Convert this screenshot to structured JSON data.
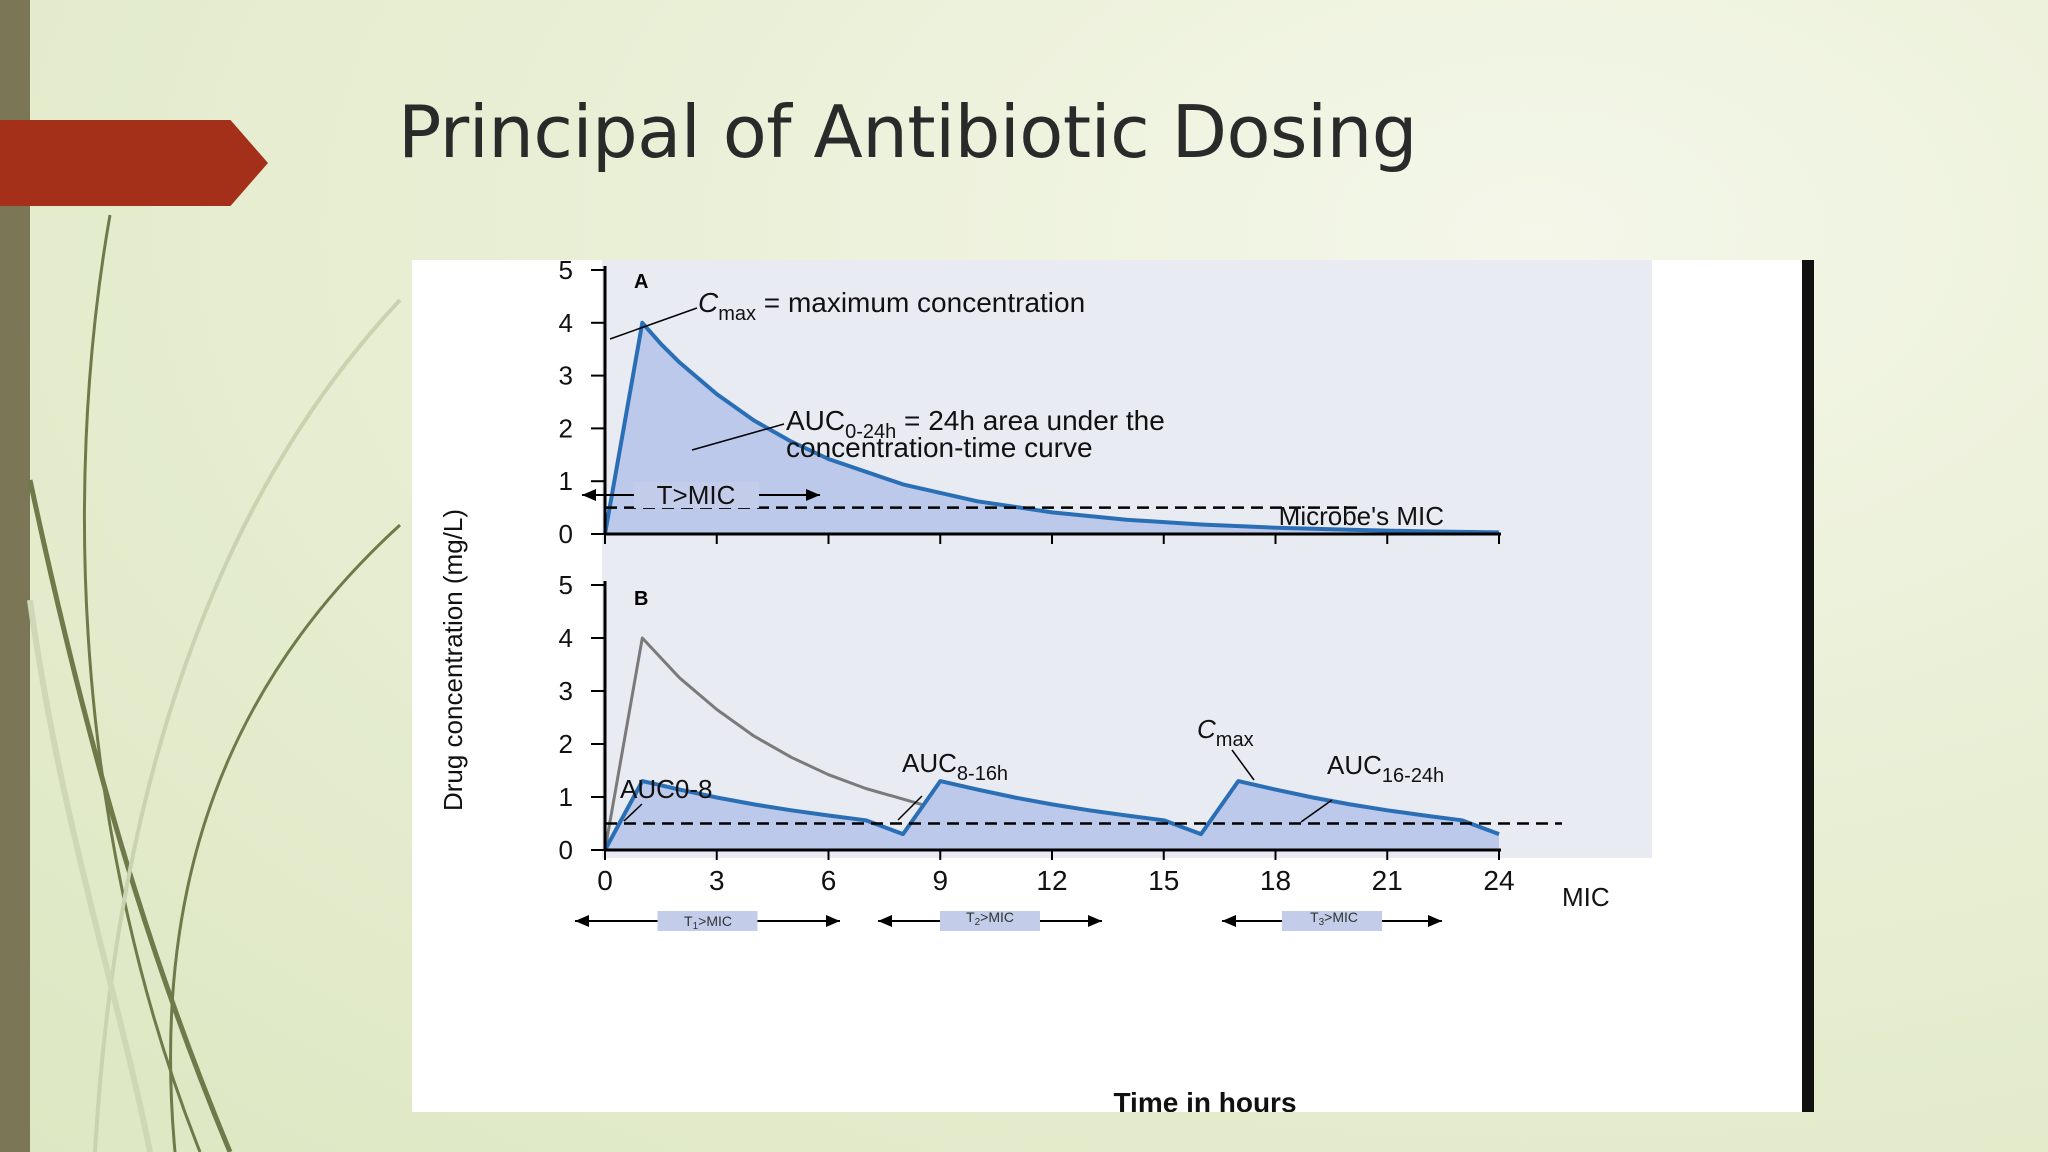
{
  "slide": {
    "title": "Principal of Antibiotic Dosing"
  },
  "chart_data": [
    {
      "panel": "A",
      "type": "area",
      "xlim": [
        0,
        24
      ],
      "ylim": [
        0,
        5
      ],
      "yticks": [
        0,
        1,
        2,
        3,
        4,
        5
      ],
      "ylabel": "Drug concentration (mg/L)",
      "mic": 0.5,
      "series": [
        {
          "x": [
            0,
            1,
            1.5,
            2,
            3,
            4,
            5,
            6,
            8,
            10,
            12,
            14,
            16,
            18,
            20,
            22,
            24
          ],
          "values": [
            0,
            4.0,
            3.6,
            3.25,
            2.65,
            2.15,
            1.75,
            1.42,
            0.94,
            0.62,
            0.41,
            0.27,
            0.18,
            0.12,
            0.08,
            0.05,
            0.03
          ]
        }
      ],
      "annotations": {
        "cmax": "C",
        "cmax_sub": "max",
        "cmax_text": " = maximum concentration",
        "auc": "AUC",
        "auc_sub": "0-24h",
        "auc_text": " = 24h area under the",
        "auc_text2": "concentration-time curve",
        "tmic": "T>MIC",
        "mic_label": "Microbe's MIC"
      }
    },
    {
      "panel": "B",
      "type": "area",
      "xlim": [
        0,
        24
      ],
      "xticks": [
        0,
        3,
        6,
        9,
        12,
        15,
        18,
        21,
        24
      ],
      "ylim": [
        0,
        5
      ],
      "yticks": [
        0,
        1,
        2,
        3,
        4,
        5
      ],
      "xlabel": "Time in hours",
      "mic": 0.5,
      "series": [
        {
          "style": "reference",
          "x": [
            0,
            1,
            2,
            3,
            4,
            5,
            6,
            7,
            8.5
          ],
          "values": [
            0,
            4.0,
            3.25,
            2.65,
            2.15,
            1.75,
            1.42,
            1.16,
            0.86
          ]
        },
        {
          "style": "divided-dose",
          "x": [
            0,
            1,
            2,
            3,
            4,
            5,
            6,
            7,
            8,
            9,
            10,
            11,
            12,
            13,
            14,
            15,
            16,
            17,
            18,
            19,
            20,
            21,
            22,
            23,
            24
          ],
          "values": [
            0,
            1.3,
            1.14,
            0.99,
            0.86,
            0.75,
            0.65,
            0.56,
            0.3,
            1.3,
            1.14,
            0.99,
            0.86,
            0.75,
            0.65,
            0.56,
            0.3,
            1.3,
            1.14,
            0.99,
            0.86,
            0.75,
            0.65,
            0.56,
            0.3
          ]
        }
      ],
      "annotations": {
        "auc1": "AUC",
        "auc1_sub": "0-8",
        "auc2": "AUC",
        "auc2_sub": "8-16h",
        "auc3": "AUC",
        "auc3_sub": "16-24h",
        "cmax": "C",
        "cmax_sub": "max",
        "mic_label": "MIC",
        "t1": "T",
        "t1_sub": "1",
        "t2": "T",
        "t2_sub": "2",
        "t3": "T",
        "t3_sub": "3",
        "tmic_suffix": ">MIC"
      }
    }
  ],
  "colors": {
    "line": "#2a6fb5",
    "fill": "#bcc9ea",
    "plot_bg": "#e9ebf2",
    "reference_line": "#7a7a7a",
    "accent": "#a4301a"
  }
}
